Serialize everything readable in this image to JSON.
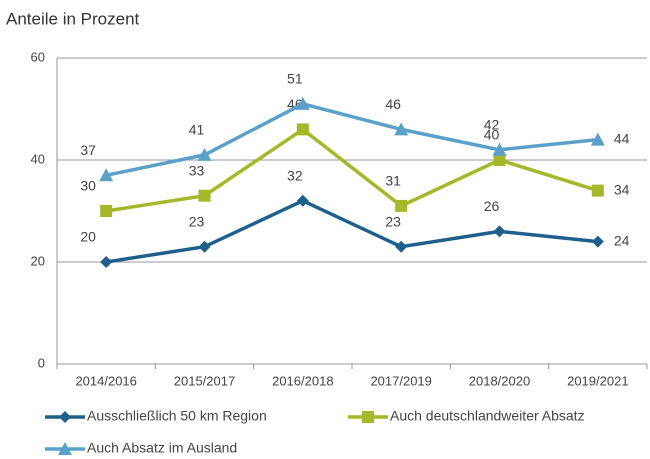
{
  "chart_data": {
    "type": "line",
    "title": "Anteile in Prozent",
    "categories": [
      "2014/2016",
      "2015/2017",
      "2016/2018",
      "2017/2019",
      "2018/2020",
      "2019/2021"
    ],
    "series": [
      {
        "name": "Ausschließlich 50 km Region",
        "color": "#1f5f8b",
        "marker": "diamond",
        "values": [
          20,
          23,
          32,
          23,
          26,
          24
        ]
      },
      {
        "name": "Auch deutschlandweiter Absatz",
        "color": "#a5b82a",
        "marker": "square",
        "values": [
          30,
          33,
          46,
          31,
          40,
          34
        ]
      },
      {
        "name": "Auch Absatz im Ausland",
        "color": "#5aa0c8",
        "marker": "triangle",
        "values": [
          37,
          41,
          51,
          46,
          42,
          44
        ]
      }
    ],
    "ylim": [
      0,
      60
    ],
    "yticks": [
      0,
      20,
      40,
      60
    ],
    "grid": true
  }
}
